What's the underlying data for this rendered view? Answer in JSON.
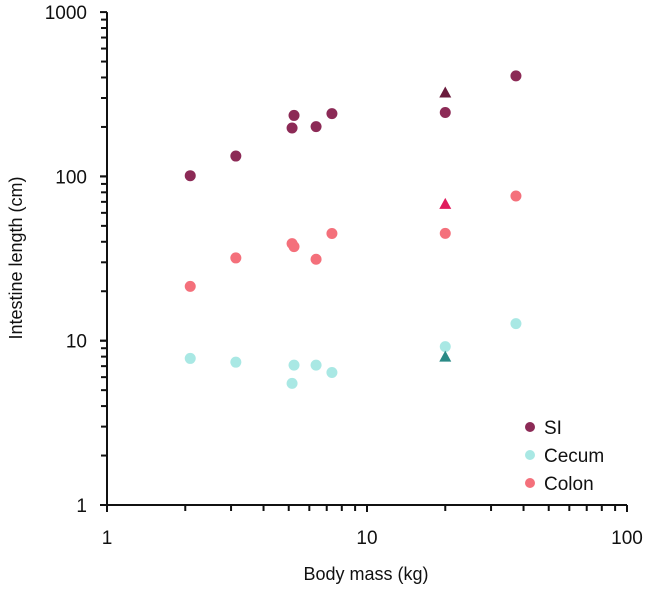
{
  "chart_data": {
    "type": "scatter",
    "title": "",
    "xlabel": "Body mass (kg)",
    "ylabel": "Intestine length (cm)",
    "x_scale": "log",
    "y_scale": "log",
    "xlim": [
      1,
      100
    ],
    "ylim": [
      1,
      1000
    ],
    "x_ticks": [
      "1",
      "10",
      "100"
    ],
    "y_ticks": [
      "1",
      "10",
      "100",
      "1000"
    ],
    "grid": false,
    "legend_position": "bottom-right",
    "series": [
      {
        "name": "SI",
        "color": "#8c2a56",
        "marker": "circle",
        "x": [
          2.09,
          3.13,
          5.15,
          5.24,
          6.37,
          7.33,
          20,
          37.4
        ],
        "y": [
          101,
          133,
          197,
          235,
          201,
          241,
          245,
          409
        ]
      },
      {
        "name": "Cecum",
        "color": "#a9e8e4",
        "marker": "circle",
        "x": [
          2.09,
          3.13,
          5.15,
          5.24,
          6.37,
          7.33,
          20,
          37.4
        ],
        "y": [
          7.8,
          7.4,
          5.5,
          7.1,
          7.1,
          6.4,
          9.2,
          12.7
        ]
      },
      {
        "name": "Colon",
        "color": "#f4707b",
        "marker": "circle",
        "x": [
          2.09,
          3.13,
          5.15,
          5.24,
          6.37,
          7.33,
          20,
          37.4
        ],
        "y": [
          21.4,
          31.9,
          39,
          37.4,
          31.3,
          44.9,
          45,
          76
        ]
      }
    ],
    "extra_points": [
      {
        "marker": "triangle",
        "color": "#6a1a3c",
        "x": 20,
        "y": 324
      },
      {
        "marker": "triangle",
        "color": "#e01a5c",
        "x": 20,
        "y": 68
      },
      {
        "marker": "triangle",
        "color": "#2a8a86",
        "x": 20,
        "y": 8.0
      }
    ]
  }
}
